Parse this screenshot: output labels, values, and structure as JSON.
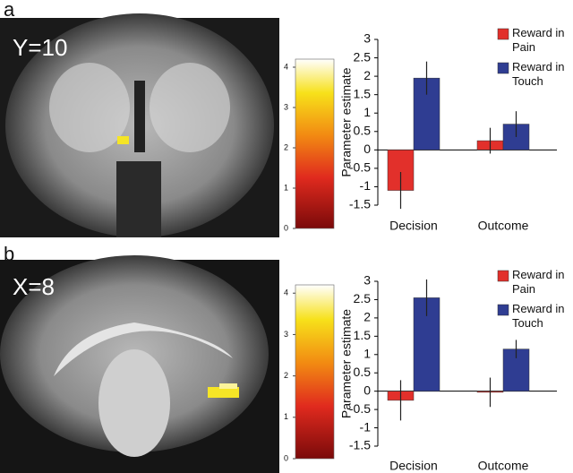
{
  "panels": [
    {
      "label": "a",
      "slice": "Y=10"
    },
    {
      "label": "b",
      "slice": "X=8"
    }
  ],
  "chart_data": [
    {
      "type": "bar",
      "y_label": "Parameter estimate",
      "categories": [
        "Decision",
        "Outcome"
      ],
      "series": [
        {
          "name": "Reward in Pain",
          "color": "#e2302b",
          "values": [
            -1.1,
            0.25
          ],
          "errors": [
            0.5,
            0.35
          ]
        },
        {
          "name": "Reward in Touch",
          "color": "#2f3d92",
          "values": [
            1.95,
            0.7
          ],
          "errors": [
            0.45,
            0.35
          ]
        }
      ],
      "ylim": [
        -1.5,
        3
      ],
      "yticks": [
        -1.5,
        -1,
        -0.5,
        0,
        0.5,
        1,
        1.5,
        2,
        2.5,
        3
      ]
    },
    {
      "type": "colorbar",
      "ylim": [
        0,
        4.2
      ],
      "yticks": [
        0,
        1,
        2,
        3,
        4
      ]
    },
    {
      "type": "bar",
      "y_label": "Parameter estimate",
      "categories": [
        "Decision",
        "Outcome"
      ],
      "series": [
        {
          "name": "Reward in Pain",
          "color": "#e2302b",
          "values": [
            -0.25,
            -0.03
          ],
          "errors": [
            0.55,
            0.4
          ]
        },
        {
          "name": "Reward in Touch",
          "color": "#2f3d92",
          "values": [
            2.55,
            1.15
          ],
          "errors": [
            0.5,
            0.25
          ]
        }
      ],
      "ylim": [
        -1.5,
        3
      ],
      "yticks": [
        -1.5,
        -1,
        -0.5,
        0,
        0.5,
        1,
        1.5,
        2,
        2.5,
        3
      ]
    },
    {
      "type": "colorbar",
      "ylim": [
        0,
        4.2
      ],
      "yticks": [
        0,
        1,
        2,
        3,
        4
      ]
    }
  ]
}
